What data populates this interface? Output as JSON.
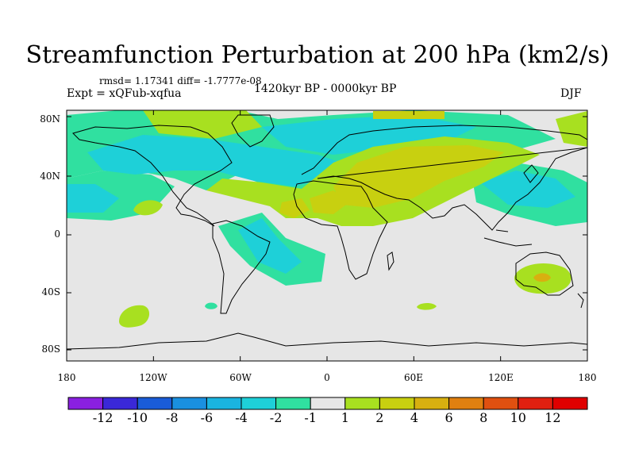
{
  "title": "Streamfunction Perturbation at 200 hPa (km2/s)",
  "stats": "rmsd= 1.17341 diff= -1.7777e-08",
  "experiment": "Expt = xQFub-xqfua",
  "period": "1420kyr BP - 0000kyr BP",
  "season": "DJF",
  "lat_labels": [
    "80N",
    "40N",
    "0",
    "40S",
    "80S"
  ],
  "lon_labels": [
    "180",
    "120W",
    "60W",
    "0",
    "60E",
    "120E",
    "180"
  ],
  "colorbar": {
    "labels": [
      "-12",
      "-10",
      "-8",
      "-6",
      "-4",
      "-2",
      "-1",
      "1",
      "2",
      "4",
      "6",
      "8",
      "10",
      "12"
    ],
    "colors": [
      "#8a20e0",
      "#3a28d8",
      "#1a5cd8",
      "#1a90e0",
      "#1ab4e0",
      "#1ed0d8",
      "#30e0a0",
      "#e6e6e6",
      "#a8e020",
      "#c8d010",
      "#d8b010",
      "#e08010",
      "#e05010",
      "#e02010",
      "#e00000"
    ]
  },
  "field_colors": {
    "neutral": "#e6e6e6",
    "teal": "#1ed0d8",
    "green": "#30e0a0",
    "lightgreen": "#a8e020",
    "yellowgreen": "#c8d010",
    "orange": "#d8b010"
  }
}
